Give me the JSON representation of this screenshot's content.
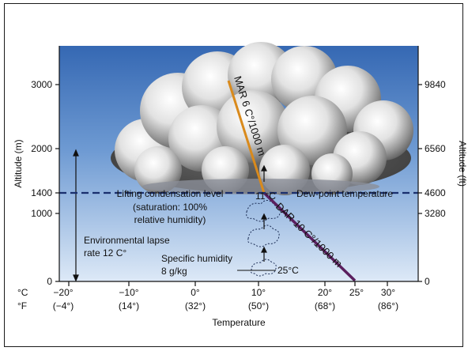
{
  "left_axis": {
    "label": "Altitude (m)",
    "ticks": [
      {
        "label": "3000",
        "value": 3000
      },
      {
        "label": "2000",
        "value": 2000
      },
      {
        "label": "1400",
        "value": 1400
      },
      {
        "label": "1000",
        "value": 1000
      },
      {
        "label": "0",
        "value": 0
      }
    ]
  },
  "right_axis": {
    "label": "Altitude (ft)",
    "ticks": [
      {
        "label": "9840",
        "value": 3000
      },
      {
        "label": "6560",
        "value": 2000
      },
      {
        "label": "4600",
        "value": 1400
      },
      {
        "label": "3280",
        "value": 1000
      },
      {
        "label": "0",
        "value": 0
      }
    ]
  },
  "x_axis": {
    "label": "Temperature",
    "unit_c": "°C",
    "unit_f": "°F",
    "ticks": [
      {
        "c": "−20°",
        "f": "(−4°)",
        "value": -20
      },
      {
        "c": "−10°",
        "f": "(14°)",
        "value": -10
      },
      {
        "c": "0°",
        "f": "(32°)",
        "value": 0
      },
      {
        "c": "10°",
        "f": "(50°)",
        "value": 10
      },
      {
        "c": "20°",
        "f": "(68°)",
        "value": 20
      },
      {
        "c": "30°",
        "f": "(86°)",
        "value": 30
      }
    ],
    "extra_tick": {
      "label": "25°",
      "value": 25
    }
  },
  "annotations": {
    "mar": "MAR 6 C°/1000 m",
    "dar": "DAR 10 C°/1000 m",
    "lcl_line1": "Lifting condensation level",
    "lcl_line2": "(saturation: 100%",
    "lcl_line3": "relative humidity)",
    "dew_point": "Dew-point temperature",
    "temp_11": "11°C",
    "temp_25": "25°C",
    "env_lapse_1": "Environmental lapse",
    "env_lapse_2": "rate 12 C°",
    "specific_humidity_1": "Specific humidity",
    "specific_humidity_2": "8 g/kg"
  },
  "colors": {
    "sky_top": "#3a6fb8",
    "sky_bottom": "#d8e6f6",
    "mar_line": "#d98a1c",
    "dar_line": "#5a1f5e",
    "lcl_dash": "#1a2f6e"
  }
}
